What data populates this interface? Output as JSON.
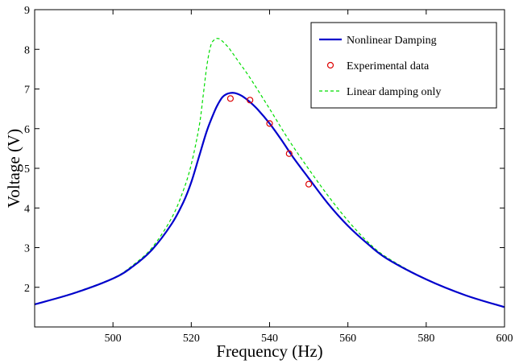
{
  "chart_data": {
    "type": "line",
    "title": "",
    "xlabel": "Frequency (Hz)",
    "ylabel": "Voltage (V)",
    "xlim": [
      480,
      600
    ],
    "ylim": [
      1,
      9
    ],
    "x_ticks": [
      500,
      520,
      540,
      560,
      580,
      600
    ],
    "y_ticks": [
      2,
      3,
      4,
      5,
      6,
      7,
      8,
      9
    ],
    "grid": false,
    "legend_position": "top-right",
    "series": [
      {
        "name": "Nonlinear Damping",
        "type": "line",
        "color": "#0000cc",
        "style": "solid",
        "x": [
          480,
          490,
          500,
          505,
          510,
          515,
          518,
          520,
          522,
          524,
          526,
          527,
          528,
          529,
          530,
          531,
          532,
          533,
          534,
          535,
          537,
          540,
          543,
          546,
          550,
          555,
          560,
          565,
          570,
          580,
          590,
          600
        ],
        "y": [
          1.57,
          1.85,
          2.22,
          2.52,
          2.95,
          3.6,
          4.15,
          4.65,
          5.3,
          5.95,
          6.45,
          6.65,
          6.8,
          6.87,
          6.9,
          6.9,
          6.87,
          6.82,
          6.75,
          6.67,
          6.48,
          6.13,
          5.72,
          5.28,
          4.75,
          4.1,
          3.55,
          3.1,
          2.72,
          2.2,
          1.8,
          1.5
        ]
      },
      {
        "name": "Experimental data",
        "type": "scatter",
        "color": "#dd0000",
        "x": [
          530,
          535,
          540,
          545,
          550
        ],
        "y": [
          6.76,
          6.72,
          6.13,
          5.37,
          4.6
        ]
      },
      {
        "name": "Linear damping only",
        "type": "line",
        "color": "#00dd00",
        "style": "dashed",
        "x": [
          480,
          490,
          500,
          505,
          510,
          515,
          518,
          520,
          522,
          523,
          524,
          525,
          526,
          527,
          528,
          529,
          530,
          532,
          535,
          540,
          545,
          550,
          555,
          560,
          565,
          570,
          580,
          590,
          600
        ],
        "y": [
          1.57,
          1.86,
          2.23,
          2.55,
          3.0,
          3.75,
          4.45,
          5.1,
          6.05,
          6.8,
          7.6,
          8.1,
          8.25,
          8.27,
          8.2,
          8.1,
          7.98,
          7.7,
          7.28,
          6.5,
          5.7,
          4.98,
          4.3,
          3.68,
          3.15,
          2.75,
          2.2,
          1.8,
          1.5
        ]
      }
    ]
  }
}
